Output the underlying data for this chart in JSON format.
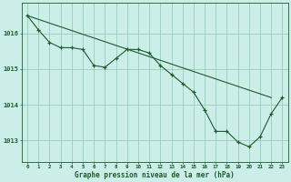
{
  "line1_x": [
    0,
    1,
    2,
    3,
    4,
    5,
    6,
    7,
    8,
    9,
    10,
    11,
    12,
    13,
    14,
    15,
    16,
    17,
    18,
    19,
    20,
    21,
    22,
    23
  ],
  "line1_y": [
    1016.5,
    1016.1,
    1015.75,
    1015.6,
    1015.6,
    1015.55,
    1015.1,
    1015.05,
    1015.3,
    1015.55,
    1015.55,
    1015.45,
    1015.1,
    1014.85,
    1014.6,
    1014.35,
    1013.85,
    1013.25,
    1013.25,
    1012.95,
    1012.82,
    1013.1,
    1013.75,
    1014.2
  ],
  "line2_x": [
    0,
    22
  ],
  "line2_y": [
    1016.5,
    1014.2
  ],
  "line_color": "#1a5c2a",
  "bg_color": "#cceee8",
  "grid_color": "#99ccbb",
  "xlabel": "Graphe pression niveau de la mer (hPa)",
  "yticks": [
    1013,
    1014,
    1015,
    1016
  ],
  "xticks": [
    0,
    1,
    2,
    3,
    4,
    5,
    6,
    7,
    8,
    9,
    10,
    11,
    12,
    13,
    14,
    15,
    16,
    17,
    18,
    19,
    20,
    21,
    22,
    23
  ],
  "ylim": [
    1012.4,
    1016.85
  ],
  "xlim": [
    -0.5,
    23.5
  ]
}
